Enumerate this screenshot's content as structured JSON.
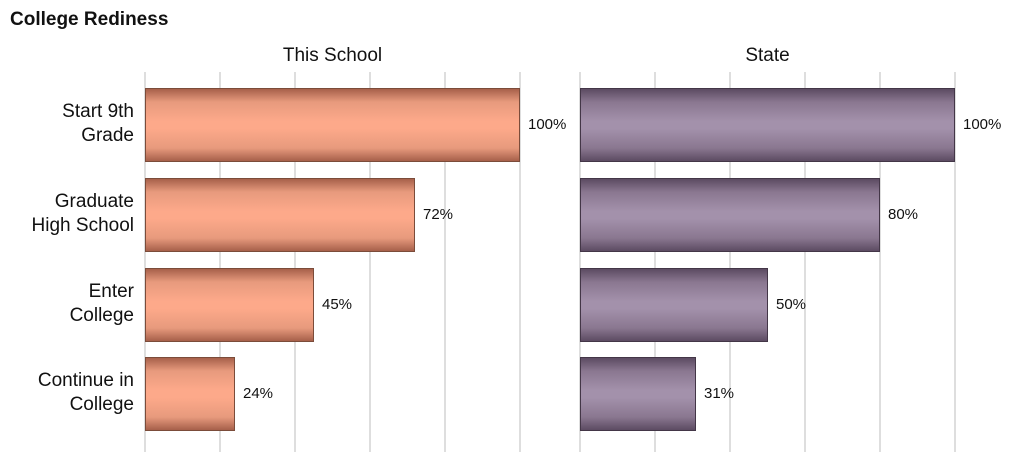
{
  "chart_data": {
    "type": "bar",
    "orientation": "horizontal",
    "title": "College Rediness",
    "categories": [
      "Start 9th Grade",
      "Graduate High School",
      "Enter College",
      "Continue in College"
    ],
    "category_lines": [
      [
        "Start 9th",
        "Grade"
      ],
      [
        "Graduate",
        "High School"
      ],
      [
        "Enter",
        "College"
      ],
      [
        "Continue in",
        "College"
      ]
    ],
    "series": [
      {
        "name": "This School",
        "values": [
          100,
          72,
          45,
          24
        ],
        "labels": [
          "100%",
          "72%",
          "45%",
          "24%"
        ],
        "color": "#fda98a"
      },
      {
        "name": "State",
        "values": [
          100,
          80,
          50,
          31
        ],
        "labels": [
          "100%",
          "80%",
          "50%",
          "31%"
        ],
        "color": "#a391ab"
      }
    ],
    "xlim": [
      0,
      100
    ],
    "grid": true,
    "legend": "none",
    "layout": "side-by-side panels"
  }
}
